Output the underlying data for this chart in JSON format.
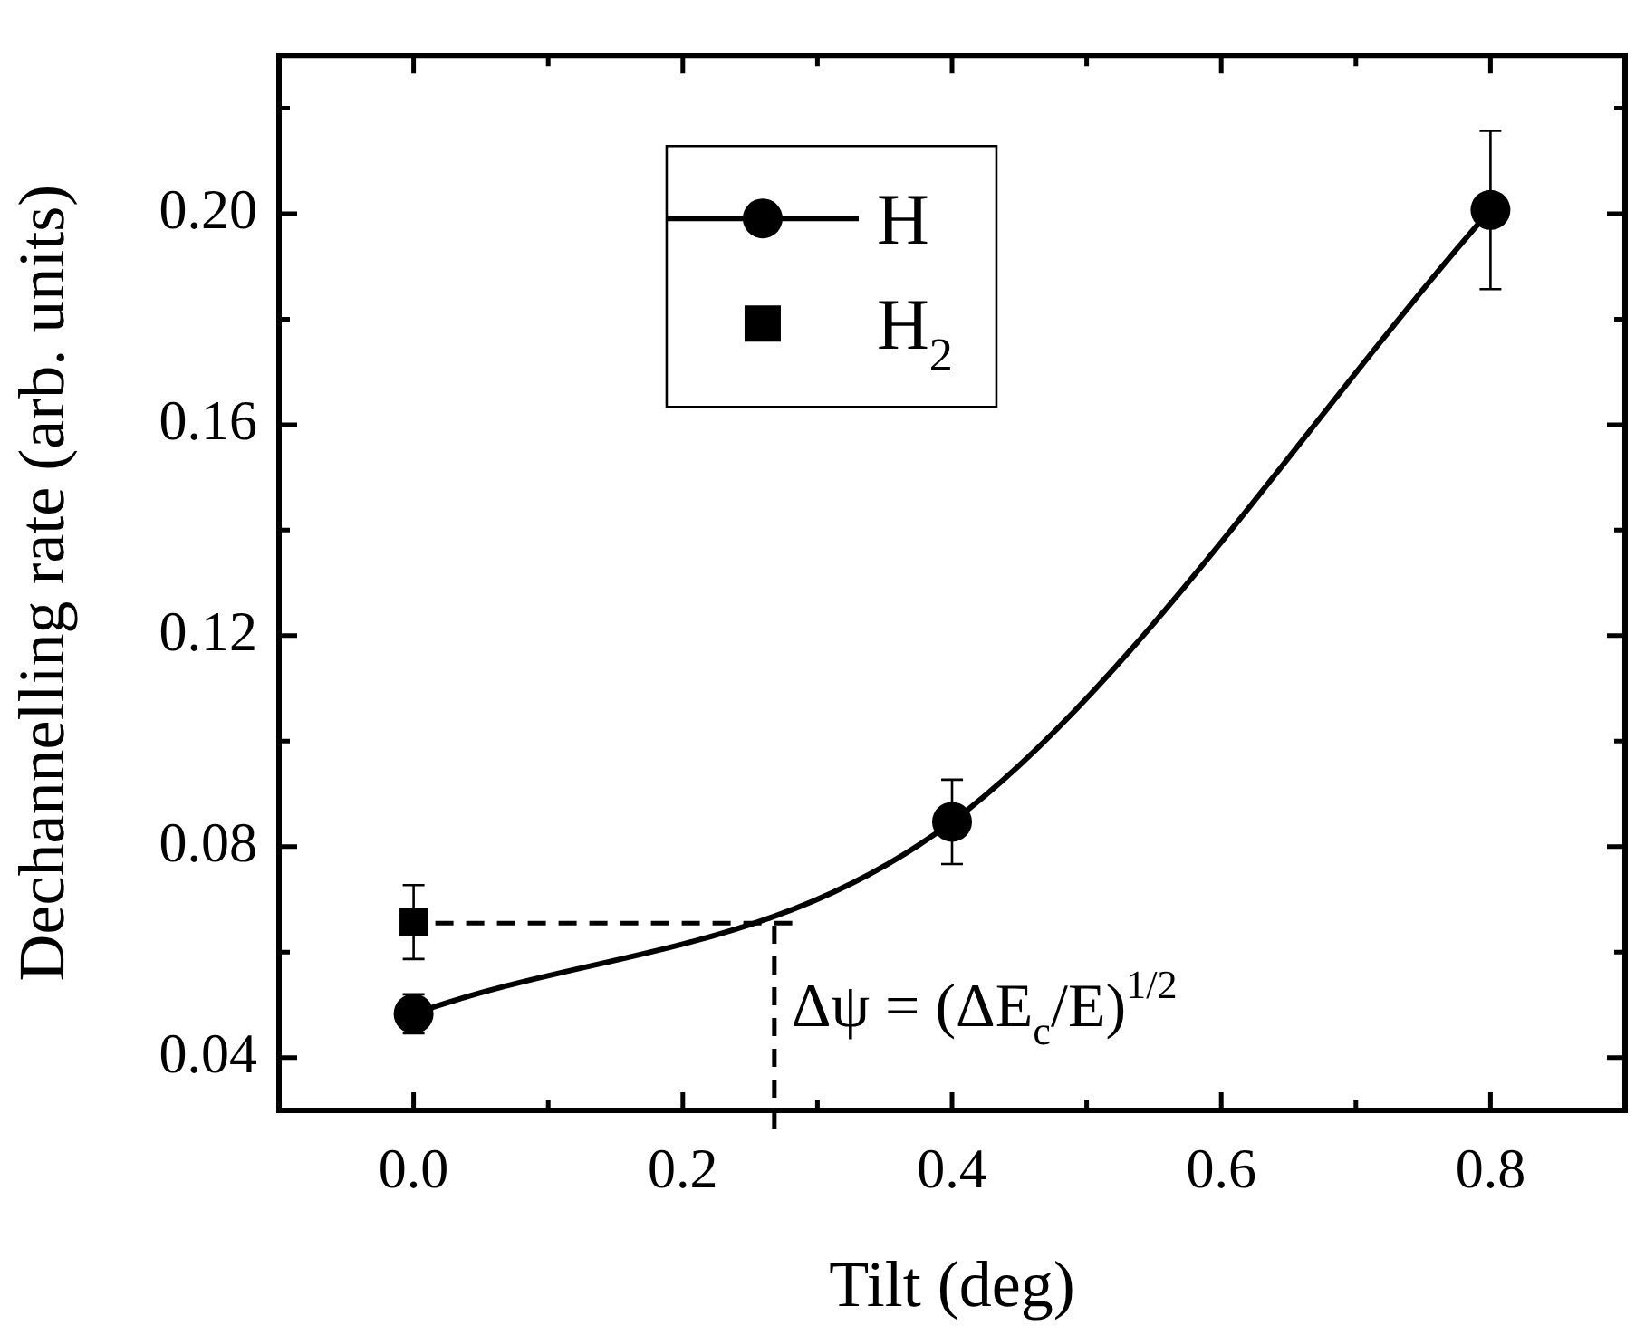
{
  "chart_data": {
    "type": "line",
    "xlabel": "Tilt (deg)",
    "ylabel": "Dechannelling rate (arb. units)",
    "xlim": [
      -0.1,
      0.9
    ],
    "ylim": [
      0.03,
      0.23
    ],
    "xticks": [
      {
        "value": -0.1,
        "label": null
      },
      {
        "value": 0,
        "label": "0.0"
      },
      {
        "value": 0.1,
        "label": null
      },
      0.2,
      {
        "value": 0.3,
        "label": null
      },
      0.4,
      {
        "value": 0.5,
        "label": null
      },
      0.6,
      {
        "value": 0.7,
        "label": null
      },
      0.8
    ],
    "yticks": [
      {
        "value": 0.03,
        "label": null
      },
      0.04,
      {
        "value": 0.06,
        "label": null
      },
      0.08,
      {
        "value": 0.1,
        "label": null
      },
      0.12,
      {
        "value": 0.14,
        "label": null
      },
      0.16,
      {
        "value": 0.18,
        "label": null
      },
      {
        "value": 0.2,
        "label": "0.20"
      },
      {
        "value": 0.22,
        "label": null
      }
    ],
    "series": [
      {
        "name": "H",
        "type": "line",
        "color": "#000000",
        "x": [
          0.0,
          0.4,
          0.8
        ],
        "values": [
          0.0483,
          0.0847,
          0.2007
        ],
        "errors": [
          0.0037,
          0.008,
          0.015
        ],
        "marker": "circle",
        "line_style": "solid"
      },
      {
        "name": "H$_{2}$",
        "type": "scatter",
        "color": "#000000",
        "x": [
          0.0
        ],
        "values": [
          0.0657
        ],
        "errors": [
          0.007
        ],
        "marker": "square"
      }
    ],
    "ref_lines": [
      {
        "axis": "y",
        "value": 0.0655,
        "line_style": "dashed"
      },
      {
        "axis": "x",
        "value": 0.268,
        "line_style": "dashed"
      }
    ],
    "annotations": [
      {
        "text": "Δψ = (ΔE$_{c}$/E)$^{1/2}$",
        "x": 0.27,
        "y": 0.046
      }
    ],
    "legend": "top left",
    "grid": false
  }
}
